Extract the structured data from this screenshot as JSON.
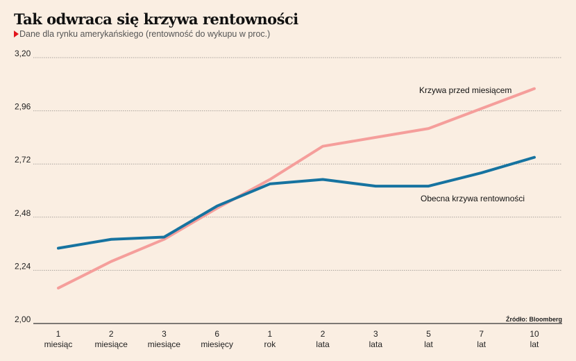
{
  "chart_data": {
    "type": "line",
    "title": "Tak odwraca się krzywa rentowności",
    "subtitle": "Dane dla rynku amerykańskiego (rentowność do wykupu w proc.)",
    "source": "Źródło: Bloomberg",
    "xlabel": "",
    "ylabel": "",
    "ylim": [
      2.0,
      3.2
    ],
    "yticks": [
      "2,00",
      "2,24",
      "2,48",
      "2,72",
      "2,96",
      "3,20"
    ],
    "ytick_values": [
      2.0,
      2.24,
      2.48,
      2.72,
      2.96,
      3.2
    ],
    "grid": true,
    "categories": [
      {
        "top": "1",
        "bottom": "miesiąc"
      },
      {
        "top": "2",
        "bottom": "miesiące"
      },
      {
        "top": "3",
        "bottom": "miesiące"
      },
      {
        "top": "6",
        "bottom": "miesięcy"
      },
      {
        "top": "1",
        "bottom": "rok"
      },
      {
        "top": "2",
        "bottom": "lata"
      },
      {
        "top": "3",
        "bottom": "lata"
      },
      {
        "top": "5",
        "bottom": "lat"
      },
      {
        "top": "7",
        "bottom": "lat"
      },
      {
        "top": "10",
        "bottom": "lat"
      }
    ],
    "series": [
      {
        "name": "Krzywa przed miesiącem",
        "color": "#f59e9b",
        "values": [
          2.16,
          2.28,
          2.38,
          2.52,
          2.65,
          2.8,
          2.84,
          2.88,
          2.97,
          3.06
        ]
      },
      {
        "name": "Obecna krzywa rentowności",
        "color": "#1673a0",
        "values": [
          2.34,
          2.38,
          2.39,
          2.53,
          2.63,
          2.65,
          2.62,
          2.62,
          2.68,
          2.75
        ]
      }
    ],
    "annotations": [
      {
        "text": "Krzywa przed miesiącem",
        "series": 0
      },
      {
        "text": "Obecna krzywa rentowności",
        "series": 1
      }
    ]
  },
  "colors": {
    "background": "#faeee2",
    "accent_marker": "#e2141c",
    "grid": "#a8a29c",
    "axis": "#333333"
  }
}
